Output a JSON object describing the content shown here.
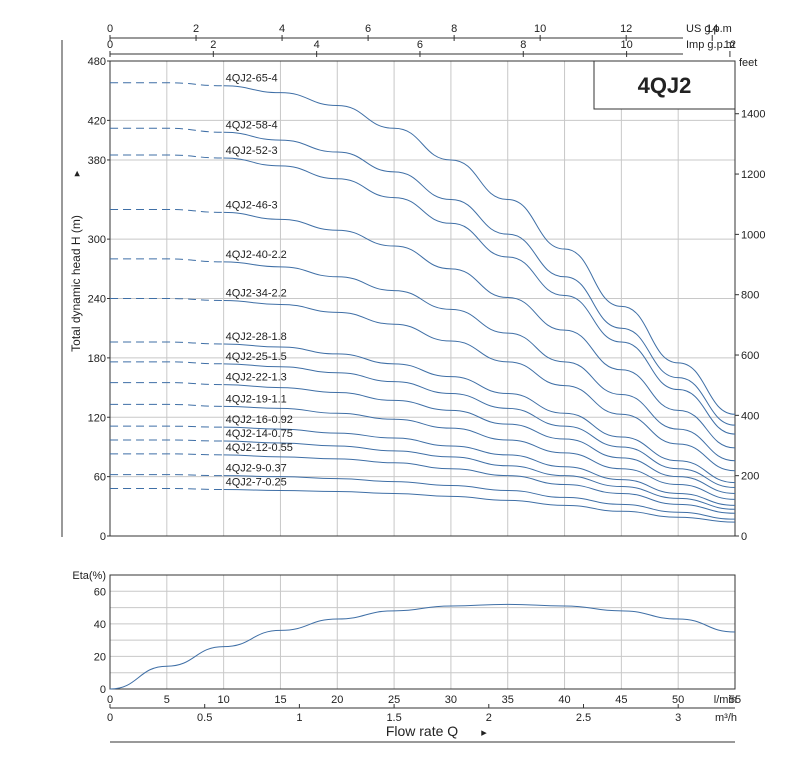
{
  "chart_data": [
    {
      "type": "line",
      "title": "4QJ2",
      "ylabel": "Total dynamic head H (m)",
      "ylabel_arrow": "▸",
      "xlim": [
        0,
        55
      ],
      "ylim": [
        0,
        480
      ],
      "y_ticks": [
        0,
        60,
        120,
        180,
        240,
        300,
        380,
        420,
        480
      ],
      "y_tick_labels": [
        "0",
        "60",
        "120",
        "180",
        "240",
        "300",
        "380",
        "420",
        "480"
      ],
      "right_axis": {
        "unit": "feet",
        "ticks": [
          0,
          200,
          400,
          600,
          800,
          1000,
          1200,
          1400
        ],
        "labels": [
          "0",
          "200",
          "400",
          "600",
          "800",
          "1000",
          "1200",
          "1400"
        ]
      },
      "top_axes": [
        {
          "unit": "US g.p.m",
          "ticks": [
            0,
            2,
            4,
            6,
            8,
            10,
            12,
            14
          ],
          "labels": [
            "0",
            "2",
            "4",
            "6",
            "8",
            "10",
            "12",
            "14"
          ]
        },
        {
          "unit": "Imp g.p.m",
          "ticks": [
            0,
            2,
            4,
            6,
            8,
            10,
            12
          ],
          "labels": [
            "0",
            "2",
            "4",
            "6",
            "8",
            "10",
            "12"
          ]
        }
      ],
      "dashed_until_x": 10,
      "grid": true,
      "x": [
        0,
        5,
        10,
        15,
        20,
        25,
        30,
        35,
        40,
        45,
        50,
        55
      ],
      "series": [
        {
          "name": "4QJ2-65-4",
          "values": [
            458,
            458,
            455,
            448,
            435,
            412,
            380,
            340,
            290,
            232,
            175,
            123
          ]
        },
        {
          "name": "4QJ2-58-4",
          "values": [
            412,
            412,
            408,
            400,
            388,
            368,
            340,
            305,
            262,
            210,
            160,
            112
          ]
        },
        {
          "name": "4QJ2-52-3",
          "values": [
            385,
            385,
            382,
            374,
            361,
            342,
            316,
            282,
            243,
            196,
            148,
            103
          ]
        },
        {
          "name": "4QJ2-46-3",
          "values": [
            330,
            330,
            327,
            320,
            309,
            293,
            270,
            241,
            208,
            168,
            127,
            89
          ]
        },
        {
          "name": "4QJ2-40-2.2",
          "values": [
            280,
            280,
            277,
            272,
            262,
            248,
            229,
            205,
            176,
            143,
            108,
            76
          ]
        },
        {
          "name": "4QJ2-34-2.2",
          "values": [
            240,
            240,
            238,
            234,
            226,
            214,
            197,
            176,
            152,
            123,
            93,
            66
          ]
        },
        {
          "name": "4QJ2-28-1.8",
          "values": [
            196,
            196,
            194,
            191,
            184,
            174,
            161,
            144,
            124,
            100,
            76,
            54
          ]
        },
        {
          "name": "4QJ2-25-1.5",
          "values": [
            176,
            176,
            174,
            171,
            165,
            156,
            144,
            129,
            111,
            90,
            68,
            49
          ]
        },
        {
          "name": "4QJ2-22-1.3",
          "values": [
            155,
            155,
            153,
            150,
            145,
            137,
            127,
            113,
            98,
            79,
            60,
            43
          ]
        },
        {
          "name": "4QJ2-19-1.1",
          "values": [
            133,
            133,
            131,
            129,
            124,
            118,
            109,
            97,
            84,
            68,
            52,
            37
          ]
        },
        {
          "name": "4QJ2-16-0.92",
          "values": [
            111,
            111,
            110,
            108,
            104,
            99,
            91,
            82,
            70,
            57,
            43,
            31
          ]
        },
        {
          "name": "4QJ2-14-0.75",
          "values": [
            97,
            97,
            96,
            94,
            91,
            86,
            80,
            71,
            61,
            50,
            38,
            27
          ]
        },
        {
          "name": "4QJ2-12-0.55",
          "values": [
            83,
            83,
            82,
            80,
            78,
            74,
            68,
            61,
            52,
            43,
            32,
            23
          ]
        },
        {
          "name": "4QJ2-9-0.37",
          "values": [
            62,
            62,
            61,
            60,
            58,
            55,
            51,
            46,
            39,
            32,
            24,
            17
          ]
        },
        {
          "name": "4QJ2-7-0.25",
          "values": [
            48,
            48,
            47,
            46,
            45,
            43,
            40,
            36,
            31,
            25,
            19,
            14
          ]
        }
      ]
    },
    {
      "type": "line",
      "ylabel": "Eta(%)",
      "xlim": [
        0,
        55
      ],
      "ylim": [
        0,
        70
      ],
      "y_ticks": [
        0,
        20,
        40,
        60
      ],
      "x_ticks": [
        0,
        5,
        10,
        15,
        20,
        25,
        30,
        35,
        40,
        45,
        50,
        55
      ],
      "x_tick_labels": [
        "0",
        "5",
        "10",
        "15",
        "20",
        "25",
        "30",
        "35",
        "40",
        "45",
        "50",
        "55"
      ],
      "x_unit": "l/min",
      "x2_ticks": [
        0,
        0.5,
        1,
        1.5,
        2,
        2.5,
        3
      ],
      "x2_tick_labels": [
        "0",
        "0.5",
        "1",
        "1.5",
        "2",
        "2.5",
        "3"
      ],
      "x2_unit": "m³/h",
      "xlabel": "Flow rate Q",
      "xlabel_arrow": "▸",
      "grid": true,
      "x": [
        0,
        5,
        10,
        15,
        20,
        25,
        30,
        35,
        40,
        45,
        50,
        55
      ],
      "series": [
        {
          "values": [
            0,
            14,
            26,
            36,
            43,
            48,
            51,
            52,
            51,
            48,
            43,
            35
          ]
        }
      ]
    }
  ],
  "colors": {
    "curve": "#3f6fa6",
    "grid": "#c8c8c8",
    "axis": "#333333"
  }
}
